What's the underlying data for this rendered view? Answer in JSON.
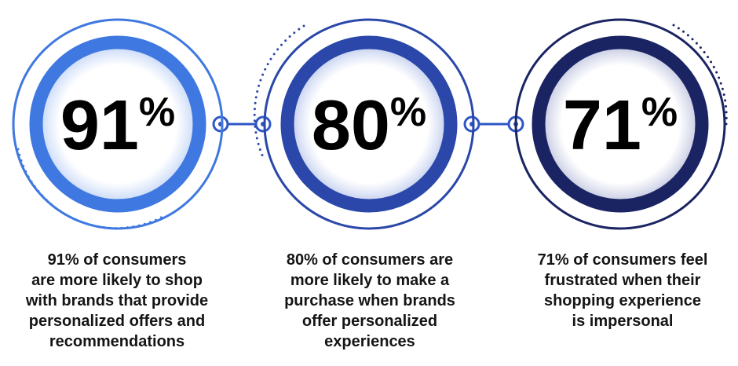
{
  "stats": [
    {
      "value": "91",
      "suffix": "%",
      "caption": "91% of consumers\nare more likely to shop\nwith brands that provide\npersonalized offers and\nrecommendations",
      "color": "#3f78e0"
    },
    {
      "value": "80",
      "suffix": "%",
      "caption": "80% of consumers are\nmore likely to make a\npurchase when brands\noffer personalized\nexperiences",
      "color": "#2a47a9"
    },
    {
      "value": "71",
      "suffix": "%",
      "caption": "71% of consumers feel\nfrustrated when their\nshopping experience\nis impersonal",
      "color": "#1a2463"
    }
  ],
  "connector_color": "#2f57c4"
}
